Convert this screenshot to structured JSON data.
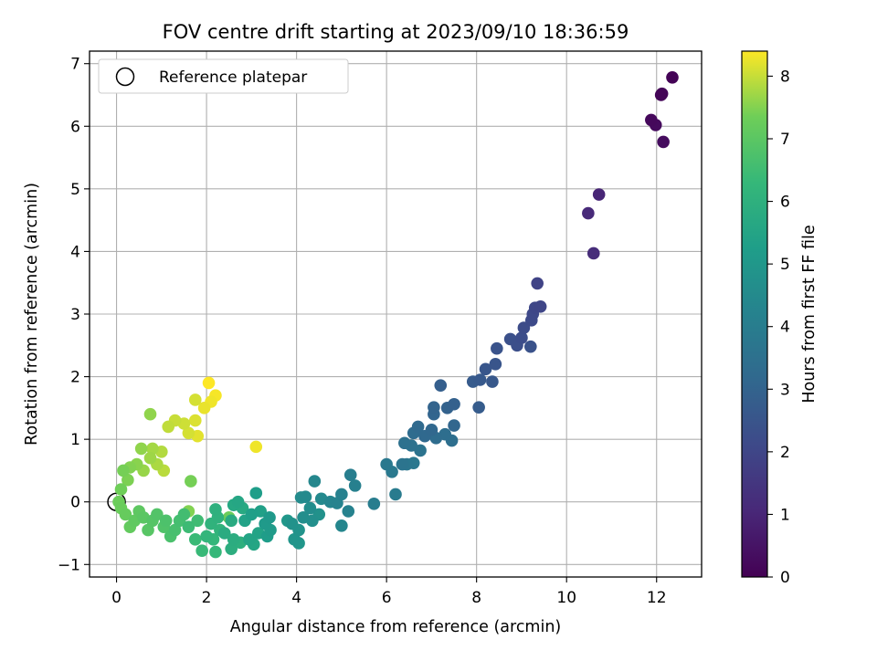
{
  "chart_data": {
    "type": "scatter",
    "title": "FOV centre drift starting at 2023/09/10 18:36:59",
    "xlabel": "Angular distance from reference (arcmin)",
    "ylabel": "Rotation from reference (arcmin)",
    "xlim": [
      -0.6,
      13.0
    ],
    "ylim": [
      -1.2,
      7.2
    ],
    "xticks": [
      0,
      2,
      4,
      6,
      8,
      10,
      12
    ],
    "yticks": [
      -1,
      0,
      1,
      2,
      3,
      4,
      5,
      6,
      7
    ],
    "grid": true,
    "legend": {
      "position": "top-left",
      "entries": [
        "Reference platepar"
      ]
    },
    "reference_point": {
      "x": 0,
      "y": 0
    },
    "colorbar": {
      "label": "Hours from first FF file",
      "colormap": "viridis",
      "range": [
        0,
        8.4
      ],
      "ticks": [
        0,
        1,
        2,
        3,
        4,
        5,
        6,
        7,
        8
      ]
    },
    "points": [
      {
        "x": 12.35,
        "y": 6.78,
        "h": 0.05
      },
      {
        "x": 12.1,
        "y": 6.5,
        "h": 0.1
      },
      {
        "x": 12.12,
        "y": 6.52,
        "h": 0.15
      },
      {
        "x": 11.88,
        "y": 6.1,
        "h": 0.2
      },
      {
        "x": 11.98,
        "y": 6.02,
        "h": 0.25
      },
      {
        "x": 12.15,
        "y": 5.75,
        "h": 0.3
      },
      {
        "x": 10.72,
        "y": 4.91,
        "h": 1.0
      },
      {
        "x": 10.48,
        "y": 4.61,
        "h": 1.1
      },
      {
        "x": 10.6,
        "y": 3.97,
        "h": 1.2
      },
      {
        "x": 9.35,
        "y": 3.49,
        "h": 1.9
      },
      {
        "x": 9.42,
        "y": 3.12,
        "h": 2.0
      },
      {
        "x": 9.3,
        "y": 3.1,
        "h": 2.05
      },
      {
        "x": 9.25,
        "y": 3.0,
        "h": 2.1
      },
      {
        "x": 9.22,
        "y": 2.9,
        "h": 2.15
      },
      {
        "x": 9.05,
        "y": 2.78,
        "h": 2.2
      },
      {
        "x": 9.0,
        "y": 2.62,
        "h": 2.25
      },
      {
        "x": 8.9,
        "y": 2.5,
        "h": 2.3
      },
      {
        "x": 8.75,
        "y": 2.6,
        "h": 2.35
      },
      {
        "x": 9.2,
        "y": 2.48,
        "h": 2.4
      },
      {
        "x": 8.45,
        "y": 2.45,
        "h": 2.45
      },
      {
        "x": 8.42,
        "y": 2.2,
        "h": 2.5
      },
      {
        "x": 8.2,
        "y": 2.12,
        "h": 2.55
      },
      {
        "x": 8.35,
        "y": 1.92,
        "h": 2.6
      },
      {
        "x": 8.08,
        "y": 1.95,
        "h": 2.65
      },
      {
        "x": 7.92,
        "y": 1.92,
        "h": 2.7
      },
      {
        "x": 8.05,
        "y": 1.51,
        "h": 2.75
      },
      {
        "x": 7.2,
        "y": 1.86,
        "h": 2.85
      },
      {
        "x": 7.5,
        "y": 1.56,
        "h": 2.9
      },
      {
        "x": 7.35,
        "y": 1.5,
        "h": 2.95
      },
      {
        "x": 7.05,
        "y": 1.51,
        "h": 3.0
      },
      {
        "x": 7.05,
        "y": 1.4,
        "h": 3.05
      },
      {
        "x": 7.5,
        "y": 1.22,
        "h": 3.1
      },
      {
        "x": 7.0,
        "y": 1.15,
        "h": 3.15
      },
      {
        "x": 6.85,
        "y": 1.05,
        "h": 3.2
      },
      {
        "x": 6.7,
        "y": 1.2,
        "h": 3.25
      },
      {
        "x": 6.6,
        "y": 1.1,
        "h": 3.3
      },
      {
        "x": 7.1,
        "y": 1.02,
        "h": 3.35
      },
      {
        "x": 7.3,
        "y": 1.08,
        "h": 3.4
      },
      {
        "x": 7.45,
        "y": 0.98,
        "h": 3.45
      },
      {
        "x": 6.4,
        "y": 0.94,
        "h": 3.5
      },
      {
        "x": 6.55,
        "y": 0.9,
        "h": 3.55
      },
      {
        "x": 6.75,
        "y": 0.82,
        "h": 3.6
      },
      {
        "x": 6.35,
        "y": 0.6,
        "h": 3.65
      },
      {
        "x": 6.45,
        "y": 0.6,
        "h": 3.7
      },
      {
        "x": 6.6,
        "y": 0.62,
        "h": 3.75
      },
      {
        "x": 6.0,
        "y": 0.6,
        "h": 3.8
      },
      {
        "x": 6.12,
        "y": 0.48,
        "h": 3.85
      },
      {
        "x": 6.2,
        "y": 0.12,
        "h": 3.9
      },
      {
        "x": 5.72,
        "y": -0.03,
        "h": 4.0
      },
      {
        "x": 5.2,
        "y": 0.43,
        "h": 4.05
      },
      {
        "x": 5.3,
        "y": 0.26,
        "h": 4.1
      },
      {
        "x": 5.0,
        "y": 0.12,
        "h": 4.15
      },
      {
        "x": 5.15,
        "y": -0.15,
        "h": 4.2
      },
      {
        "x": 4.9,
        "y": -0.02,
        "h": 4.25
      },
      {
        "x": 4.75,
        "y": 0.0,
        "h": 4.3
      },
      {
        "x": 5.0,
        "y": -0.38,
        "h": 4.35
      },
      {
        "x": 4.4,
        "y": 0.33,
        "h": 4.4
      },
      {
        "x": 4.55,
        "y": 0.05,
        "h": 4.45
      },
      {
        "x": 4.2,
        "y": 0.08,
        "h": 4.5
      },
      {
        "x": 4.1,
        "y": 0.07,
        "h": 4.55
      },
      {
        "x": 4.3,
        "y": -0.1,
        "h": 4.6
      },
      {
        "x": 4.15,
        "y": -0.25,
        "h": 4.65
      },
      {
        "x": 4.35,
        "y": -0.3,
        "h": 4.7
      },
      {
        "x": 4.5,
        "y": -0.2,
        "h": 4.75
      },
      {
        "x": 3.9,
        "y": -0.35,
        "h": 4.8
      },
      {
        "x": 4.05,
        "y": -0.45,
        "h": 4.85
      },
      {
        "x": 3.95,
        "y": -0.6,
        "h": 4.9
      },
      {
        "x": 4.05,
        "y": -0.66,
        "h": 4.95
      },
      {
        "x": 3.8,
        "y": -0.3,
        "h": 5.0
      },
      {
        "x": 3.4,
        "y": -0.25,
        "h": 5.05
      },
      {
        "x": 3.3,
        "y": -0.35,
        "h": 5.1
      },
      {
        "x": 3.42,
        "y": -0.45,
        "h": 5.15
      },
      {
        "x": 3.35,
        "y": -0.55,
        "h": 5.2
      },
      {
        "x": 3.1,
        "y": 0.14,
        "h": 5.25
      },
      {
        "x": 3.0,
        "y": -0.2,
        "h": 5.3
      },
      {
        "x": 3.2,
        "y": -0.15,
        "h": 5.35
      },
      {
        "x": 2.85,
        "y": -0.3,
        "h": 5.4
      },
      {
        "x": 3.15,
        "y": -0.5,
        "h": 5.45
      },
      {
        "x": 2.95,
        "y": -0.6,
        "h": 5.5
      },
      {
        "x": 3.05,
        "y": -0.68,
        "h": 5.55
      },
      {
        "x": 2.7,
        "y": 0.0,
        "h": 5.6
      },
      {
        "x": 2.6,
        "y": -0.05,
        "h": 5.65
      },
      {
        "x": 2.8,
        "y": -0.1,
        "h": 5.7
      },
      {
        "x": 2.55,
        "y": -0.3,
        "h": 5.75
      },
      {
        "x": 2.4,
        "y": -0.5,
        "h": 5.8
      },
      {
        "x": 2.6,
        "y": -0.6,
        "h": 5.85
      },
      {
        "x": 2.55,
        "y": -0.75,
        "h": 5.9
      },
      {
        "x": 2.75,
        "y": -0.65,
        "h": 5.95
      },
      {
        "x": 2.2,
        "y": -0.12,
        "h": 6.0
      },
      {
        "x": 2.25,
        "y": -0.25,
        "h": 6.05
      },
      {
        "x": 2.1,
        "y": -0.35,
        "h": 6.1
      },
      {
        "x": 2.3,
        "y": -0.45,
        "h": 6.15
      },
      {
        "x": 2.0,
        "y": -0.55,
        "h": 6.2
      },
      {
        "x": 2.15,
        "y": -0.6,
        "h": 6.25
      },
      {
        "x": 2.2,
        "y": -0.8,
        "h": 6.3
      },
      {
        "x": 1.9,
        "y": -0.78,
        "h": 6.35
      },
      {
        "x": 1.75,
        "y": -0.6,
        "h": 6.4
      },
      {
        "x": 1.6,
        "y": -0.4,
        "h": 6.45
      },
      {
        "x": 1.8,
        "y": -0.3,
        "h": 6.5
      },
      {
        "x": 1.5,
        "y": -0.2,
        "h": 6.55
      },
      {
        "x": 1.4,
        "y": -0.3,
        "h": 6.6
      },
      {
        "x": 1.3,
        "y": -0.45,
        "h": 6.65
      },
      {
        "x": 1.2,
        "y": -0.55,
        "h": 6.7
      },
      {
        "x": 1.1,
        "y": -0.3,
        "h": 6.75
      },
      {
        "x": 1.05,
        "y": -0.4,
        "h": 6.8
      },
      {
        "x": 0.9,
        "y": -0.2,
        "h": 6.85
      },
      {
        "x": 0.8,
        "y": -0.3,
        "h": 6.9
      },
      {
        "x": 0.7,
        "y": -0.45,
        "h": 6.95
      },
      {
        "x": 0.6,
        "y": -0.25,
        "h": 7.0
      },
      {
        "x": 0.5,
        "y": -0.15,
        "h": 7.05
      },
      {
        "x": 0.4,
        "y": -0.3,
        "h": 7.1
      },
      {
        "x": 0.3,
        "y": -0.4,
        "h": 7.15
      },
      {
        "x": 0.2,
        "y": -0.2,
        "h": 7.2
      },
      {
        "x": 0.1,
        "y": -0.1,
        "h": 7.25
      },
      {
        "x": 0.05,
        "y": 0.0,
        "h": 7.3
      },
      {
        "x": 0.1,
        "y": 0.2,
        "h": 7.35
      },
      {
        "x": 0.15,
        "y": 0.5,
        "h": 7.4
      },
      {
        "x": 0.25,
        "y": 0.35,
        "h": 7.45
      },
      {
        "x": 0.3,
        "y": 0.55,
        "h": 7.5
      },
      {
        "x": 0.45,
        "y": 0.6,
        "h": 7.55
      },
      {
        "x": 0.55,
        "y": 0.85,
        "h": 7.6
      },
      {
        "x": 0.6,
        "y": 0.5,
        "h": 7.65
      },
      {
        "x": 0.75,
        "y": 0.7,
        "h": 7.7
      },
      {
        "x": 0.8,
        "y": 0.85,
        "h": 7.75
      },
      {
        "x": 0.9,
        "y": 0.6,
        "h": 7.8
      },
      {
        "x": 1.0,
        "y": 0.8,
        "h": 7.85
      },
      {
        "x": 1.05,
        "y": 0.5,
        "h": 7.9
      },
      {
        "x": 1.15,
        "y": 1.2,
        "h": 7.95
      },
      {
        "x": 1.3,
        "y": 1.3,
        "h": 8.0
      },
      {
        "x": 1.5,
        "y": 1.25,
        "h": 8.05
      },
      {
        "x": 1.6,
        "y": 1.1,
        "h": 8.1
      },
      {
        "x": 1.75,
        "y": 1.3,
        "h": 8.15
      },
      {
        "x": 1.8,
        "y": 1.05,
        "h": 8.2
      },
      {
        "x": 1.95,
        "y": 1.5,
        "h": 8.25
      },
      {
        "x": 2.1,
        "y": 1.6,
        "h": 8.3
      },
      {
        "x": 2.2,
        "y": 1.7,
        "h": 8.35
      },
      {
        "x": 2.05,
        "y": 1.9,
        "h": 8.4
      },
      {
        "x": 0.75,
        "y": 1.4,
        "h": 7.6
      },
      {
        "x": 1.75,
        "y": 1.63,
        "h": 8.1
      },
      {
        "x": 3.1,
        "y": 0.88,
        "h": 8.3
      },
      {
        "x": 1.65,
        "y": 0.33,
        "h": 7.4
      },
      {
        "x": 2.5,
        "y": -0.25,
        "h": 7.3
      },
      {
        "x": 1.6,
        "y": -0.15,
        "h": 7.5
      }
    ]
  }
}
